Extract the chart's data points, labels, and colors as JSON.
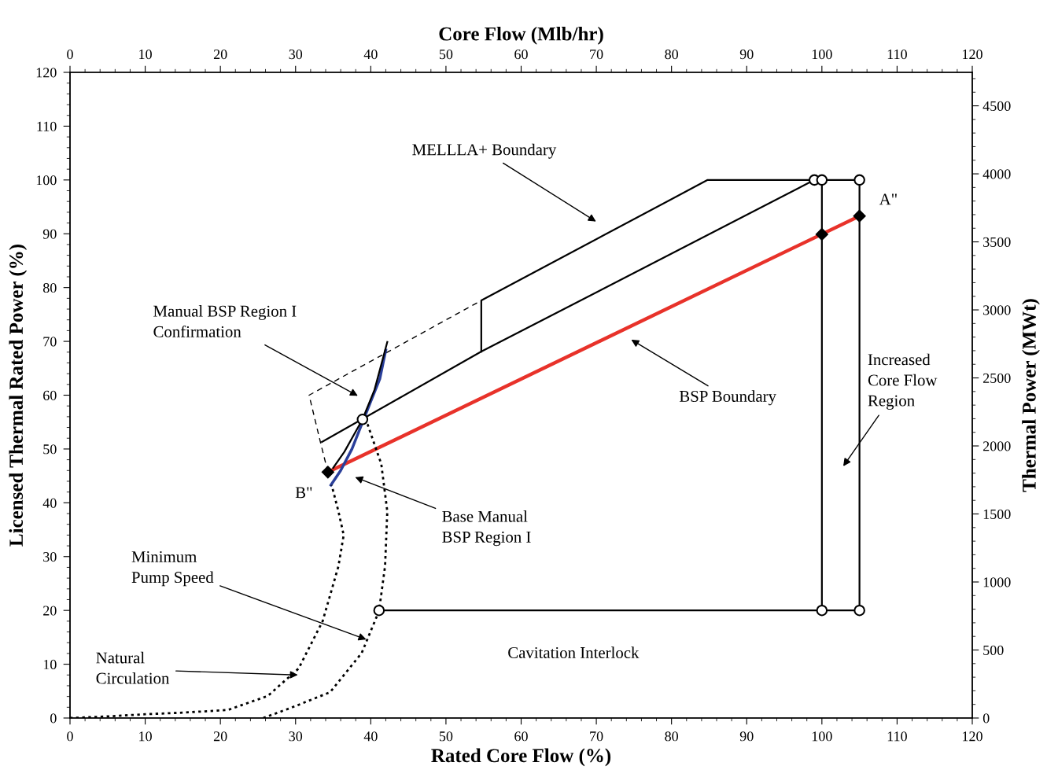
{
  "chart_data": {
    "type": "line",
    "xlabel": "Rated Core Flow (%)",
    "ylabel": "Licensed Thermal Rated Power (%)",
    "x2label": "Core Flow (Mlb/hr)",
    "y2label": "Thermal Power (MWt)",
    "xlim": [
      0,
      120
    ],
    "xticks": [
      0,
      10,
      20,
      30,
      40,
      50,
      60,
      70,
      80,
      90,
      100,
      110,
      120
    ],
    "ylim": [
      0,
      120
    ],
    "yticks": [
      0,
      10,
      20,
      30,
      40,
      50,
      60,
      70,
      80,
      90,
      100,
      110,
      120
    ],
    "x2lim": [
      0,
      120
    ],
    "x2ticks": [
      0,
      10,
      20,
      30,
      40,
      50,
      60,
      70,
      80,
      90,
      100,
      110,
      120
    ],
    "y2lim": [
      0,
      4746
    ],
    "y2ticks": [
      0,
      500,
      1000,
      1500,
      2000,
      2500,
      3000,
      3500,
      4000,
      4500
    ],
    "grid": false,
    "series": [
      {
        "color": "#000000",
        "line_style": "dashed",
        "x": [
          34.3,
          33.3,
          31.8,
          54.7
        ],
        "values": [
          45.7,
          51.3,
          60,
          77.6
        ]
      },
      {
        "color": "#000000",
        "line_style": "solid",
        "x": [
          54.7,
          54.7,
          84.8,
          104.9
        ],
        "values": [
          68.1,
          77.6,
          100,
          100
        ]
      },
      {
        "color": "#000000",
        "line_style": "solid",
        "x": [
          33.5,
          54.7,
          99
        ],
        "values": [
          51.3,
          68.1,
          100
        ]
      },
      {
        "color": "#000000",
        "line_style": "solid",
        "x": [
          100,
          100
        ],
        "values": [
          100,
          20
        ]
      },
      {
        "color": "#000000",
        "line_style": "solid",
        "x": [
          105,
          105
        ],
        "values": [
          100,
          20
        ]
      },
      {
        "color": "#000000",
        "line_style": "solid",
        "x": [
          41.1,
          105
        ],
        "values": [
          20,
          20
        ]
      },
      {
        "color": "#e8322a",
        "line_style": "solid",
        "x": [
          34.3,
          105
        ],
        "values": [
          45.7,
          93.3
        ]
      },
      {
        "color": "#2a3f9a",
        "line_style": "solid",
        "x": [
          34.7,
          36,
          37.5,
          39.9,
          41.2,
          42
        ],
        "values": [
          43.3,
          46,
          50,
          58.5,
          63,
          68.4
        ]
      },
      {
        "color": "#000000",
        "line_style": "solid",
        "x": [
          35,
          36.5,
          38.9,
          40.5,
          42.2
        ],
        "values": [
          46.5,
          49.5,
          55.5,
          61,
          69.9
        ]
      },
      {
        "color": "#000000",
        "line_style": "dotted",
        "x": [
          0,
          5,
          10,
          15,
          21,
          26.3,
          30.4,
          33.6,
          35.7,
          36.4,
          35.7,
          34.8
        ],
        "values": [
          0,
          0.3,
          0.7,
          1.0,
          1.5,
          4.1,
          9.2,
          18,
          28.2,
          34,
          38.4,
          43.3
        ]
      },
      {
        "color": "#000000",
        "line_style": "dotted",
        "x": [
          25.7,
          29.4,
          34.6,
          38.8,
          41.1,
          41.9,
          42.2,
          41.4,
          39.6,
          38.9
        ],
        "values": [
          0,
          1.9,
          4.8,
          12.1,
          19.9,
          28.2,
          38.4,
          47.2,
          54.5,
          55.5
        ]
      },
      {
        "type": "scatter",
        "color": "#000000",
        "marker": "circle",
        "x": [
          38.9,
          99,
          100,
          105,
          41.1,
          100,
          105
        ],
        "values": [
          55.5,
          100,
          100,
          100,
          20,
          20,
          20
        ]
      },
      {
        "type": "scatter",
        "color": "#000000",
        "marker": "diamond",
        "x": [
          34.3,
          100,
          105
        ],
        "values": [
          45.7,
          89.9,
          93.3
        ]
      }
    ],
    "annotations": [
      "MELLLA+ Boundary",
      "Manual BSP Region I\nConfirmation",
      "BSP Boundary",
      "Increased\nCore Flow\nRegion",
      "Base Manual\nBSP Region I",
      {
        "text": "Minimum\nPump Speed",
        "x": 39.4,
        "y": 14.6
      },
      {
        "text": "Natural\nCirculation",
        "x": 30.3,
        "y": 8
      },
      {
        "text": "Cavitation Interlock",
        "x": 72,
        "y": 20
      },
      {
        "text": "A\"",
        "x": 105,
        "y": 93.3
      },
      {
        "text": "B\"",
        "x": 34.3,
        "y": 45.7
      }
    ]
  }
}
